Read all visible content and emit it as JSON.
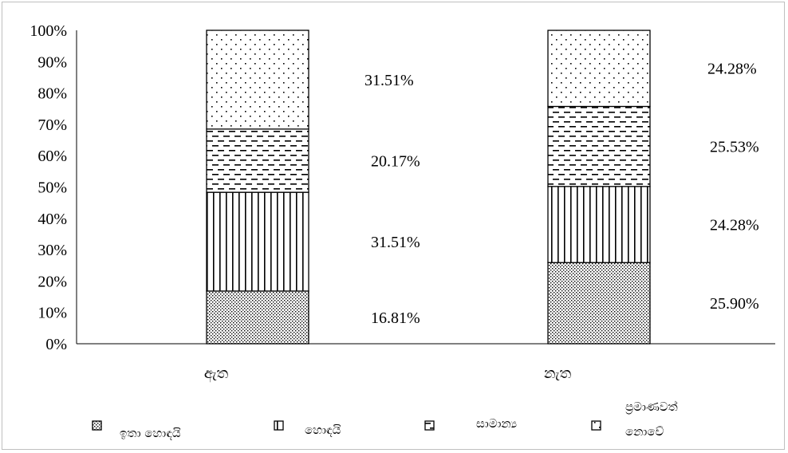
{
  "chart_data": {
    "type": "bar",
    "stacked": true,
    "percent_stacked": true,
    "categories": [
      "ඇත",
      "නැත"
    ],
    "series": [
      {
        "name": "ඉතා හොඳයි",
        "values": [
          16.81,
          25.9
        ],
        "labels": [
          "16.81%",
          "25.90%"
        ],
        "pattern": "dense-dots"
      },
      {
        "name": "හොඳයි",
        "values": [
          31.51,
          24.28
        ],
        "labels": [
          "31.51%",
          "24.28%"
        ],
        "pattern": "vertical-lines"
      },
      {
        "name": "සාමාන්‍ය",
        "values": [
          20.17,
          25.53
        ],
        "labels": [
          "20.17%",
          "25.53%"
        ],
        "pattern": "dashes"
      },
      {
        "name": "ප්‍රමාණවත් නොවේ",
        "values": [
          31.51,
          24.28
        ],
        "labels": [
          "31.51%",
          "24.28%"
        ],
        "pattern": "sparse-dots"
      }
    ],
    "y_ticks": [
      "0%",
      "10%",
      "20%",
      "30%",
      "40%",
      "50%",
      "60%",
      "70%",
      "80%",
      "90%",
      "100%"
    ],
    "ylim": [
      0,
      100
    ],
    "legend_position": "bottom",
    "grid": false,
    "colors": {
      "stroke": "#000000",
      "background": "#ffffff",
      "frame": "#bfbfbf"
    }
  }
}
